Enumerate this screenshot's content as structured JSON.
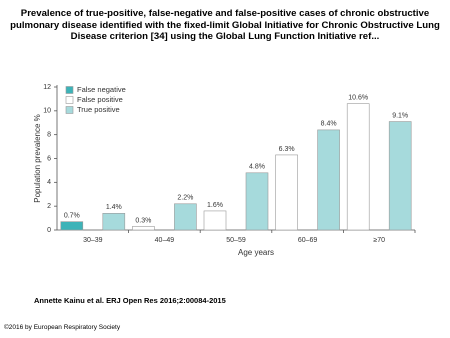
{
  "chart_data": {
    "type": "bar",
    "title": "Prevalence of true-positive, false-negative and false-positive cases of chronic obstructive pulmonary disease identified with the fixed-limit Global Initiative for Chronic Obstructive Lung Disease criterion [34] using the Global Lung Function Initiative ref...",
    "categories": [
      "30–39",
      "40–49",
      "50–59",
      "60–69",
      "≥70"
    ],
    "series": [
      {
        "name": "False negative",
        "color": "#3db3b8",
        "values": [
          0.7,
          null,
          null,
          null,
          null
        ],
        "value_labels": [
          "0.7%",
          null,
          null,
          null,
          null
        ]
      },
      {
        "name": "False positive",
        "color": "#ffffff",
        "values": [
          null,
          0.3,
          1.6,
          6.3,
          10.6
        ],
        "value_labels": [
          null,
          "0.3%",
          "1.6%",
          "6.3%",
          "10.6%"
        ]
      },
      {
        "name": "True positive",
        "color": "#a6dadc",
        "values": [
          1.4,
          2.2,
          4.8,
          8.4,
          9.1
        ],
        "value_labels": [
          "1.4%",
          "2.2%",
          "4.8%",
          "8.4%",
          "9.1%"
        ]
      }
    ],
    "y_label": "Population prevalence %",
    "x_label": "Age years",
    "ylim": [
      0,
      12
    ],
    "yticks": [
      0,
      2,
      4,
      6,
      8,
      10,
      12
    ],
    "legend": "upper left",
    "source": "Annette Kainu et al. ERJ Open Res 2016;2:00084-2015",
    "copyright": "©2016 by European Respiratory Society"
  }
}
